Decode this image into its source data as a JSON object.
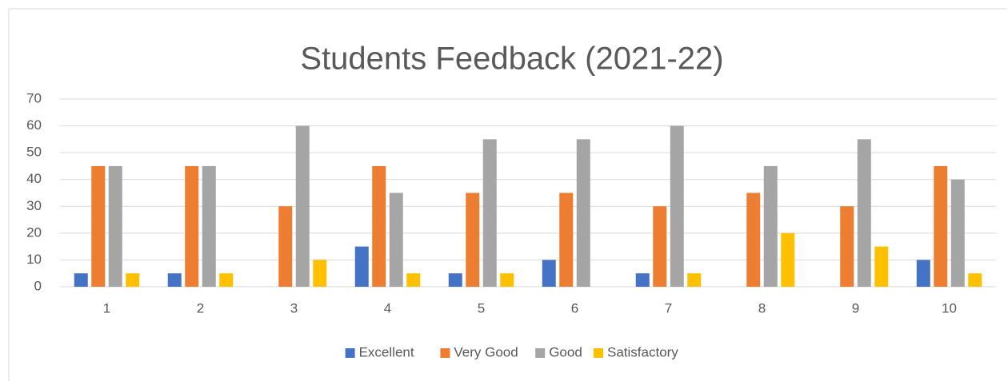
{
  "chart_data": {
    "type": "bar",
    "title": "Students Feedback (2021-22)",
    "categories": [
      "1",
      "2",
      "3",
      "4",
      "5",
      "6",
      "7",
      "8",
      "9",
      "10"
    ],
    "series": [
      {
        "name": "Excellent",
        "color": "#4472c4",
        "values": [
          5,
          5,
          0,
          15,
          5,
          10,
          5,
          0,
          0,
          10
        ]
      },
      {
        "name": "Very Good",
        "color": "#ed7d31",
        "values": [
          45,
          45,
          30,
          45,
          35,
          35,
          30,
          35,
          30,
          45
        ]
      },
      {
        "name": "Good",
        "color": "#a5a5a5",
        "values": [
          45,
          45,
          60,
          35,
          55,
          55,
          60,
          45,
          55,
          40
        ]
      },
      {
        "name": "Satisfactory",
        "color": "#ffc000",
        "values": [
          5,
          5,
          10,
          5,
          5,
          0,
          5,
          20,
          15,
          5
        ]
      }
    ],
    "ylim": [
      0,
      70
    ],
    "yticks": [
      0,
      10,
      20,
      30,
      40,
      50,
      60,
      70
    ],
    "grid": true,
    "legend": "bottom"
  }
}
